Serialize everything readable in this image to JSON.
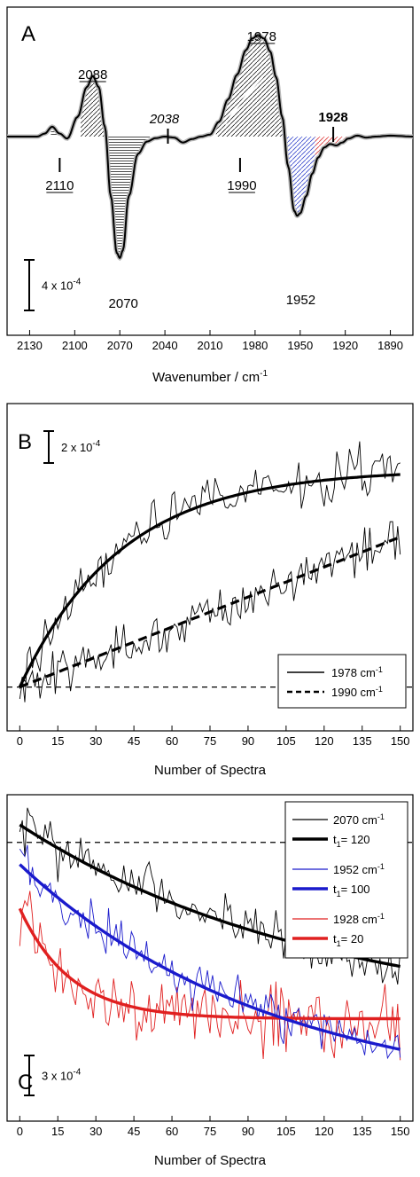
{
  "chart_data": [
    {
      "panel": "A",
      "type": "line",
      "xlabel": "Wavenumber / cm",
      "xlabel_sup": "-1",
      "x_reversed": true,
      "xlim": [
        2145,
        1875
      ],
      "ylim": [
        -3.6,
        2.4
      ],
      "xticks": [
        "2130",
        "2100",
        "2070",
        "2040",
        "2010",
        "1980",
        "1950",
        "1920",
        "1890"
      ],
      "xtick_values": [
        2130,
        2100,
        2070,
        2040,
        2010,
        1980,
        1950,
        1920,
        1890
      ],
      "scale_bar": {
        "label": "4 x 10",
        "sup": "-4",
        "value": 1.2
      },
      "spectrum": {
        "x": [
          2145,
          2125,
          2120,
          2115,
          2110,
          2105,
          2098,
          2092,
          2088,
          2084,
          2080,
          2076,
          2072,
          2070,
          2068,
          2064,
          2058,
          2052,
          2046,
          2040,
          2034,
          2028,
          2022,
          2016,
          2010,
          2004,
          1998,
          1992,
          1986,
          1982,
          1978,
          1974,
          1970,
          1966,
          1962,
          1958,
          1954,
          1952,
          1950,
          1946,
          1942,
          1938,
          1934,
          1930,
          1926,
          1922,
          1918,
          1912,
          1906,
          1900,
          1890,
          1875
        ],
        "y": [
          0.0,
          0.0,
          0.06,
          0.2,
          0.06,
          -0.04,
          0.4,
          1.0,
          1.22,
          1.0,
          0.2,
          -1.2,
          -2.35,
          -2.45,
          -2.3,
          -1.2,
          -0.35,
          -0.1,
          -0.03,
          0.0,
          -0.02,
          -0.12,
          -0.05,
          0.0,
          0.04,
          0.3,
          0.75,
          1.25,
          1.75,
          1.98,
          2.05,
          1.98,
          1.72,
          1.2,
          0.4,
          -0.6,
          -1.5,
          -1.6,
          -1.55,
          -1.2,
          -0.75,
          -0.42,
          -0.22,
          -0.15,
          -0.18,
          -0.12,
          -0.04,
          0.02,
          -0.02,
          0.0,
          0.02,
          0.0
        ]
      },
      "annotations": [
        {
          "label": "2088",
          "underline": true,
          "x": 2088
        },
        {
          "label": "2110",
          "underline": true,
          "x": 2110
        },
        {
          "label": "2070",
          "x": 2070
        },
        {
          "label": "2038",
          "italic": true,
          "x": 2038
        },
        {
          "label": "1978",
          "underline": true,
          "x": 1978
        },
        {
          "label": "1990",
          "underline": true,
          "x": 1990
        },
        {
          "label": "1952",
          "x": 1952
        },
        {
          "label": "1928",
          "bold": true,
          "x": 1928
        }
      ],
      "shading_colors": {
        "main": "#000000",
        "blue": "#3344cc",
        "red": "#dd3333"
      }
    },
    {
      "panel": "B",
      "type": "line",
      "xlabel": "Number of Spectra",
      "xlim": [
        -5,
        155
      ],
      "ylim": [
        -0.3,
        3.6
      ],
      "xticks": [
        "0",
        "15",
        "30",
        "45",
        "60",
        "75",
        "90",
        "105",
        "120",
        "135",
        "150"
      ],
      "xtick_values": [
        0,
        15,
        30,
        45,
        60,
        75,
        90,
        105,
        120,
        135,
        150
      ],
      "scale_bar": {
        "label": "2 x 10",
        "sup": "-4",
        "value": 0.6
      },
      "series": [
        {
          "name": "1978 cm",
          "sup": "-1",
          "style": "solid",
          "fit_amplitude": 2.9,
          "fit_tau": 40
        },
        {
          "name": "1990 cm",
          "sup": "-1",
          "style": "dashed",
          "fit_slope": 0.01333
        }
      ],
      "baseline": 0,
      "legend_position": "bottom-right"
    },
    {
      "panel": "C",
      "type": "line",
      "xlabel": "Number of Spectra",
      "xlim": [
        -5,
        155
      ],
      "ylim": [
        -3.1,
        0.4
      ],
      "xticks": [
        "0",
        "15",
        "30",
        "45",
        "60",
        "75",
        "90",
        "105",
        "120",
        "135",
        "150"
      ],
      "xtick_values": [
        0,
        15,
        30,
        45,
        60,
        75,
        90,
        105,
        120,
        135,
        150
      ],
      "scale_bar": {
        "label": "3 x 10",
        "sup": "-4",
        "value": 0.6
      },
      "series": [
        {
          "name": "2070 cm",
          "sup": "-1",
          "color": "#000000",
          "fit_label": "t",
          "fit_sub": "1",
          "fit_value": "= 120",
          "start": 0.2,
          "amp": 2.25,
          "tau": 120
        },
        {
          "name": "1952 cm",
          "sup": "-1",
          "color": "#1a1acc",
          "fit_label": "t",
          "fit_sub": "1",
          "fit_value": "= 100",
          "start": -0.25,
          "amp": 2.7,
          "tau": 100
        },
        {
          "name": "1928 cm",
          "sup": "-1",
          "color": "#e02020",
          "fit_label": "t",
          "fit_sub": "1",
          "fit_value": "= 20",
          "start": -0.75,
          "amp": 1.25,
          "tau": 20
        }
      ],
      "baseline": 0,
      "legend_position": "top-right"
    }
  ]
}
